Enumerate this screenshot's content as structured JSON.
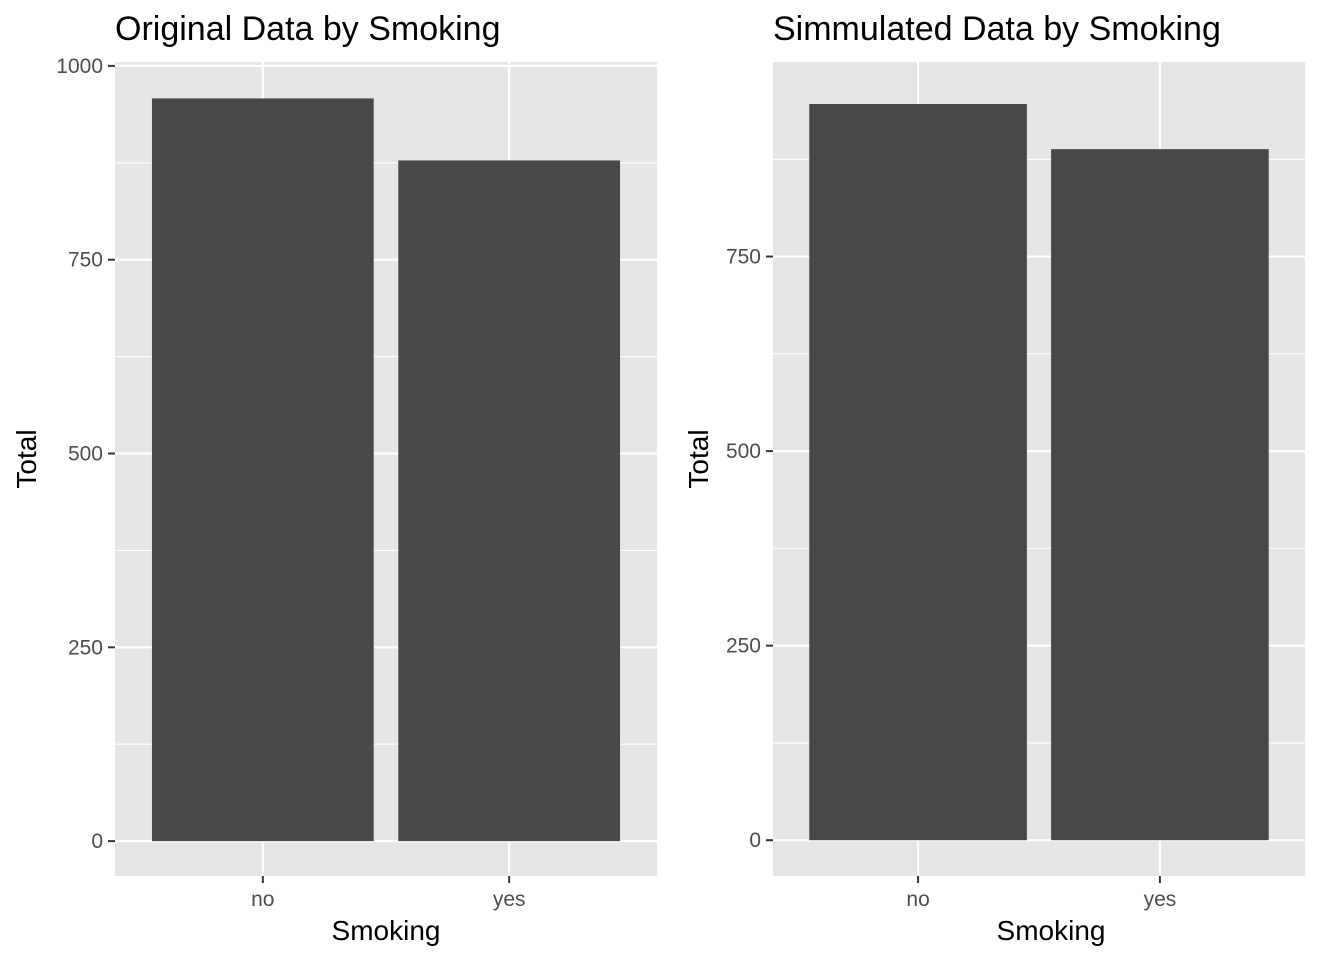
{
  "chart_data": [
    {
      "type": "bar",
      "title": "Original Data by Smoking",
      "xlabel": "Smoking",
      "ylabel": "Total",
      "categories": [
        "no",
        "yes"
      ],
      "values": [
        958,
        878
      ],
      "ylim": [
        -45,
        1005
      ],
      "yticks": [
        0,
        250,
        500,
        750,
        1000
      ],
      "grid": true,
      "colors": {
        "bar": "#484848",
        "panel": "#e5e5e5",
        "grid": "#ffffff",
        "tick": "#333333"
      }
    },
    {
      "type": "bar",
      "title": "Simmulated Data by Smoking",
      "xlabel": "Smoking",
      "ylabel": "Total",
      "categories": [
        "no",
        "yes"
      ],
      "values": [
        946,
        888
      ],
      "ylim": [
        -46,
        1000
      ],
      "yticks": [
        0,
        250,
        500,
        750
      ],
      "grid": true,
      "colors": {
        "bar": "#484848",
        "panel": "#e5e5e5",
        "grid": "#ffffff",
        "tick": "#333333"
      }
    }
  ]
}
